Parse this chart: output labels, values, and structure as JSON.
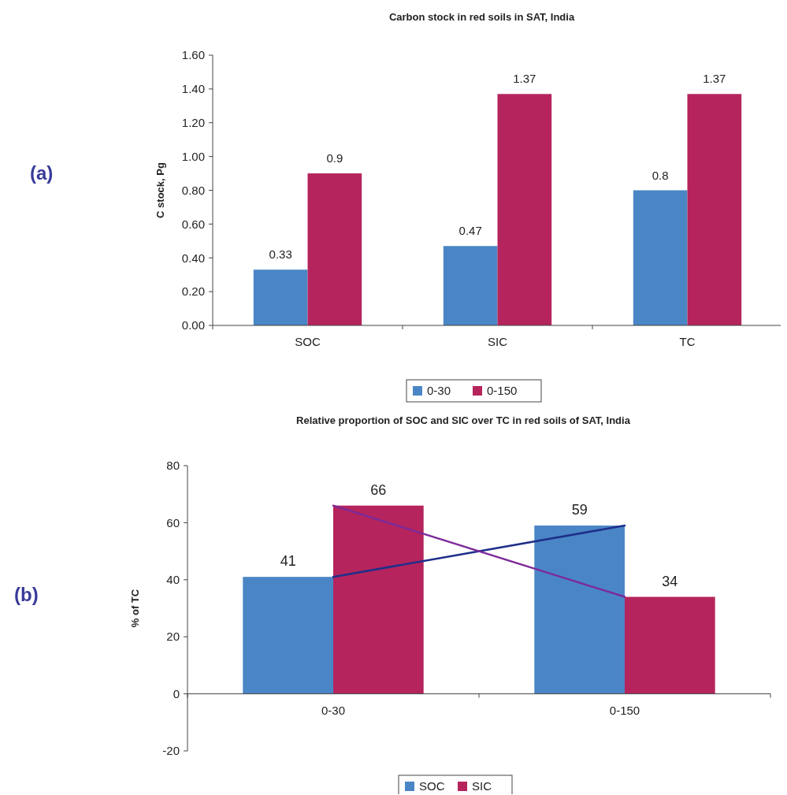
{
  "chart_data": [
    {
      "type": "bar",
      "title": "Carbon stock in red soils in SAT, India",
      "ylabel": "C stock, Pg",
      "annotations": [
        "(a)"
      ],
      "categories": [
        "SOC",
        "SIC",
        "TC"
      ],
      "series": [
        {
          "name": "0-30",
          "color": "#4a86c5",
          "values": [
            0.33,
            0.47,
            0.8
          ]
        },
        {
          "name": "0-150",
          "color": "#b5245c",
          "values": [
            0.9,
            1.37,
            1.37
          ]
        }
      ],
      "ylim": [
        0,
        1.6
      ],
      "yticks": [
        {
          "value": 0,
          "label": "0.00"
        },
        {
          "value": 0.2,
          "label": "0.20"
        },
        {
          "value": 0.4,
          "label": "0.40"
        },
        {
          "value": 0.6,
          "label": "0.60"
        },
        {
          "value": 0.8,
          "label": "0.80"
        },
        {
          "value": 1,
          "label": "1.00"
        },
        {
          "value": 1.2,
          "label": "1.20"
        },
        {
          "value": 1.4,
          "label": "1.40"
        },
        {
          "value": 1.6,
          "label": "1.60"
        }
      ],
      "data_labels": true,
      "legend": "bottom"
    },
    {
      "type": "bar",
      "title": "Relative proportion of SOC and SIC over TC in red soils of SAT, India",
      "ylabel": "% of TC",
      "annotations": [
        "(b)"
      ],
      "categories": [
        "0-30",
        "0-150"
      ],
      "series": [
        {
          "name": "SOC",
          "color": "#4a86c5",
          "values": [
            41,
            59
          ],
          "value_labels": [
            "41",
            "59"
          ]
        },
        {
          "name": "SIC",
          "color": "#b5245c",
          "values": [
            66,
            34
          ],
          "value_labels": [
            "66",
            "34"
          ]
        },
        {
          "type": "line",
          "color": "#1f2f8a",
          "values": [
            41,
            59
          ]
        },
        {
          "type": "line",
          "color": "#7d2a9a",
          "values": [
            66,
            34
          ]
        }
      ],
      "ylim": [
        -20,
        80
      ],
      "yticks": [
        -20,
        0,
        20,
        40,
        60,
        80
      ],
      "legend": "bottom"
    }
  ]
}
